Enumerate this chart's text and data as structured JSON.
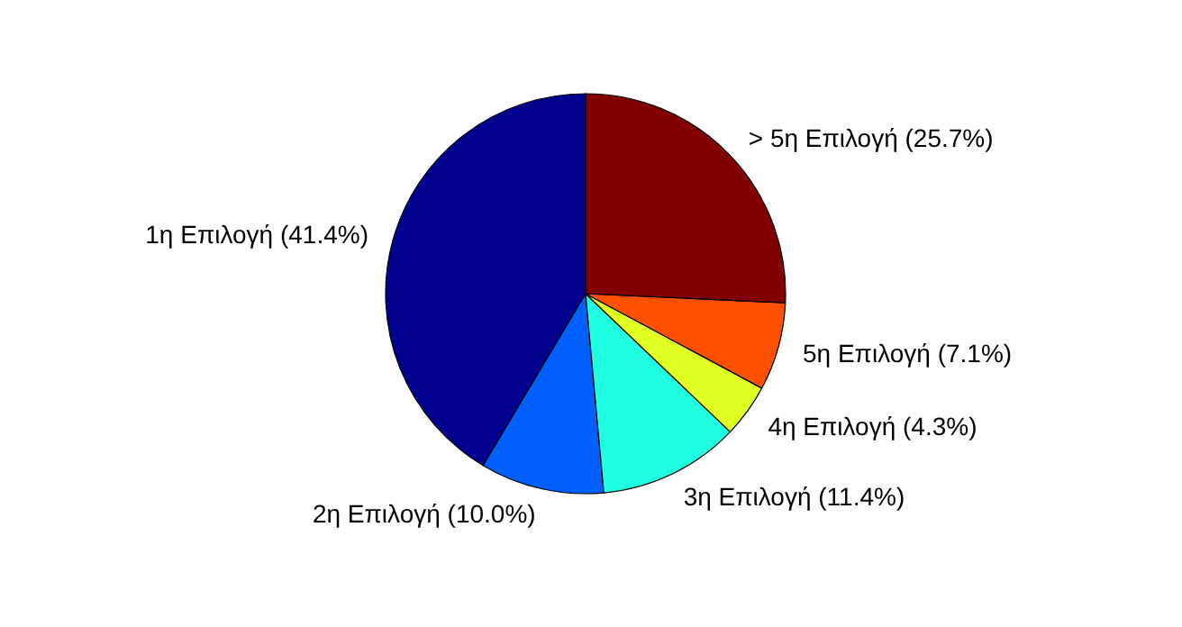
{
  "chart_data": {
    "type": "pie",
    "categories": [
      "1η Επιλογή (41.4%)",
      "2η Επιλογή (10.0%)",
      "3η Επιλογή (11.4%)",
      "4η Επιλογή (4.3%)",
      "5η Επιλογή (7.1%)",
      "> 5η Επιλογή (25.7%)"
    ],
    "values": [
      41.4,
      10.0,
      11.4,
      4.3,
      7.1,
      25.7
    ],
    "colors": [
      "#00008f",
      "#0060ff",
      "#20ffdf",
      "#e0ff20",
      "#ff5000",
      "#800000"
    ],
    "legend": false
  }
}
